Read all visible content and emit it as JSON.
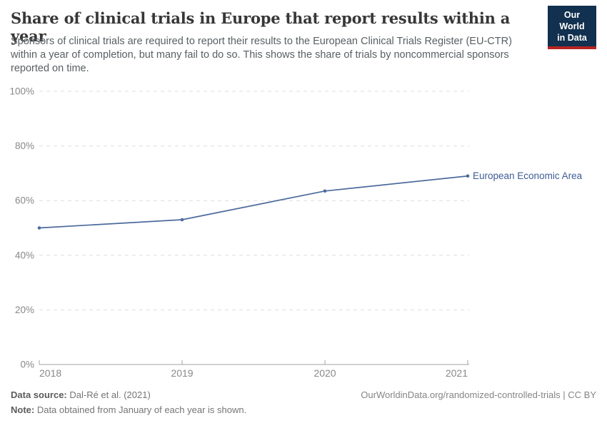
{
  "header": {
    "title": "Share of clinical trials in Europe that report results within a year",
    "subtitle": "Sponsors of clinical trials are required to report their results to the European Clinical Trials Register (EU-CTR) within a year of completion, but many fail to do so. This shows the share of trials by noncommercial sponsors reported on time.",
    "logo": {
      "line1": "Our World",
      "line2": "in Data"
    }
  },
  "chart_data": {
    "type": "line",
    "title": "Share of clinical trials in Europe that report results within a year",
    "x": [
      2018,
      2019,
      2020,
      2021
    ],
    "series": [
      {
        "name": "European Economic Area",
        "values": [
          50,
          53,
          63.5,
          69
        ]
      }
    ],
    "xlabel": "",
    "ylabel": "",
    "ylim": [
      0,
      100
    ],
    "yticks": [
      0,
      20,
      40,
      60,
      80,
      100
    ],
    "ytick_suffix": "%",
    "grid": "horizontal-dashed",
    "legend_position": "line-end-label"
  },
  "footer": {
    "data_source_label": "Data source:",
    "data_source_value": " Dal-Ré et al. (2021)",
    "note_label": "Note:",
    "note_value": " Data obtained from January of each year is shown.",
    "attribution": "OurWorldinData.org/randomized-controlled-trials | CC BY"
  },
  "colors": {
    "line": "#4c6a9c",
    "series_label": "#3d5c96",
    "grid": "#dddddd",
    "axis_line": "#a3a3a3",
    "axis_text": "#888888",
    "logo_bg": "#12304f",
    "logo_accent": "#b62421"
  }
}
